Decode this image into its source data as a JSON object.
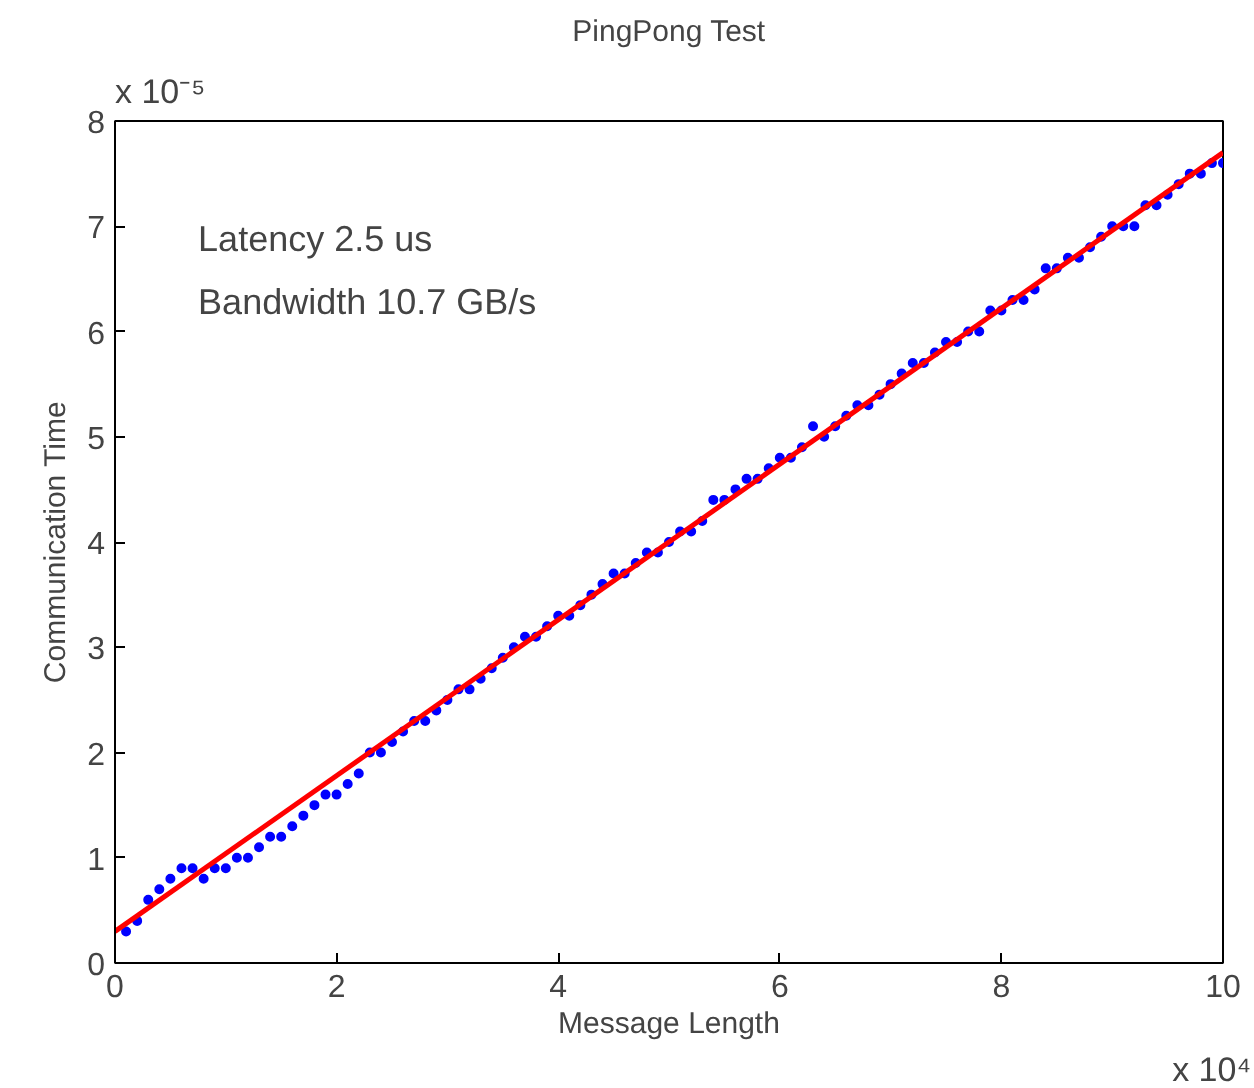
{
  "chart_data": {
    "type": "scatter",
    "title": "PingPong Test",
    "xlabel": "Message Length",
    "ylabel": "Communication Time",
    "annotations": [
      "Latency 2.5 us",
      "Bandwidth 10.7 GB/s",
      "x 10⁻⁵",
      "x 10⁴"
    ],
    "xlim": [
      0,
      10
    ],
    "ylim": [
      0,
      8
    ],
    "xticks": [
      0,
      2,
      4,
      6,
      8,
      10
    ],
    "yticks": [
      0,
      1,
      2,
      3,
      4,
      5,
      6,
      7,
      8
    ],
    "grid": false,
    "x": [
      0.1,
      0.2,
      0.3,
      0.4,
      0.5,
      0.6,
      0.7,
      0.8,
      0.9,
      1.0,
      1.1,
      1.2,
      1.3,
      1.4,
      1.5,
      1.6,
      1.7,
      1.8,
      1.9,
      2.0,
      2.1,
      2.2,
      2.3,
      2.4,
      2.5,
      2.6,
      2.7,
      2.8,
      2.9,
      3.0,
      3.1,
      3.2,
      3.3,
      3.4,
      3.5,
      3.6,
      3.7,
      3.8,
      3.9,
      4.0,
      4.1,
      4.2,
      4.3,
      4.4,
      4.5,
      4.6,
      4.7,
      4.8,
      4.9,
      5.0,
      5.1,
      5.2,
      5.3,
      5.4,
      5.5,
      5.6,
      5.7,
      5.8,
      5.9,
      6.0,
      6.1,
      6.2,
      6.3,
      6.4,
      6.5,
      6.6,
      6.7,
      6.8,
      6.9,
      7.0,
      7.1,
      7.2,
      7.3,
      7.4,
      7.5,
      7.6,
      7.7,
      7.8,
      7.9,
      8.0,
      8.1,
      8.2,
      8.3,
      8.4,
      8.5,
      8.6,
      8.7,
      8.8,
      8.9,
      9.0,
      9.1,
      9.2,
      9.3,
      9.4,
      9.5,
      9.6,
      9.7,
      9.8,
      9.9,
      10.0
    ],
    "series": [
      {
        "color": "#0000ff",
        "marker": "circle",
        "values": [
          0.3,
          0.4,
          0.6,
          0.7,
          0.8,
          0.9,
          0.9,
          0.8,
          0.9,
          0.9,
          1.0,
          1.0,
          1.1,
          1.2,
          1.2,
          1.3,
          1.4,
          1.5,
          1.6,
          1.6,
          1.7,
          1.8,
          2.0,
          2.0,
          2.1,
          2.2,
          2.3,
          2.3,
          2.4,
          2.5,
          2.6,
          2.6,
          2.7,
          2.8,
          2.9,
          3.0,
          3.1,
          3.1,
          3.2,
          3.3,
          3.3,
          3.4,
          3.5,
          3.6,
          3.7,
          3.7,
          3.8,
          3.9,
          3.9,
          4.0,
          4.1,
          4.1,
          4.2,
          4.4,
          4.4,
          4.5,
          4.6,
          4.6,
          4.7,
          4.8,
          4.8,
          4.9,
          5.1,
          5.0,
          5.1,
          5.2,
          5.3,
          5.3,
          5.4,
          5.5,
          5.6,
          5.7,
          5.7,
          5.8,
          5.9,
          5.9,
          6.0,
          6.0,
          6.2,
          6.2,
          6.3,
          6.3,
          6.4,
          6.6,
          6.6,
          6.7,
          6.7,
          6.8,
          6.9,
          7.0,
          7.0,
          7.0,
          7.2,
          7.2,
          7.3,
          7.4,
          7.5,
          7.5,
          7.6,
          7.6
        ]
      },
      {
        "type": "line",
        "color": "#ff0000",
        "line_style": "solid",
        "x": [
          0,
          10
        ],
        "values": [
          0.3,
          7.7
        ]
      }
    ]
  }
}
